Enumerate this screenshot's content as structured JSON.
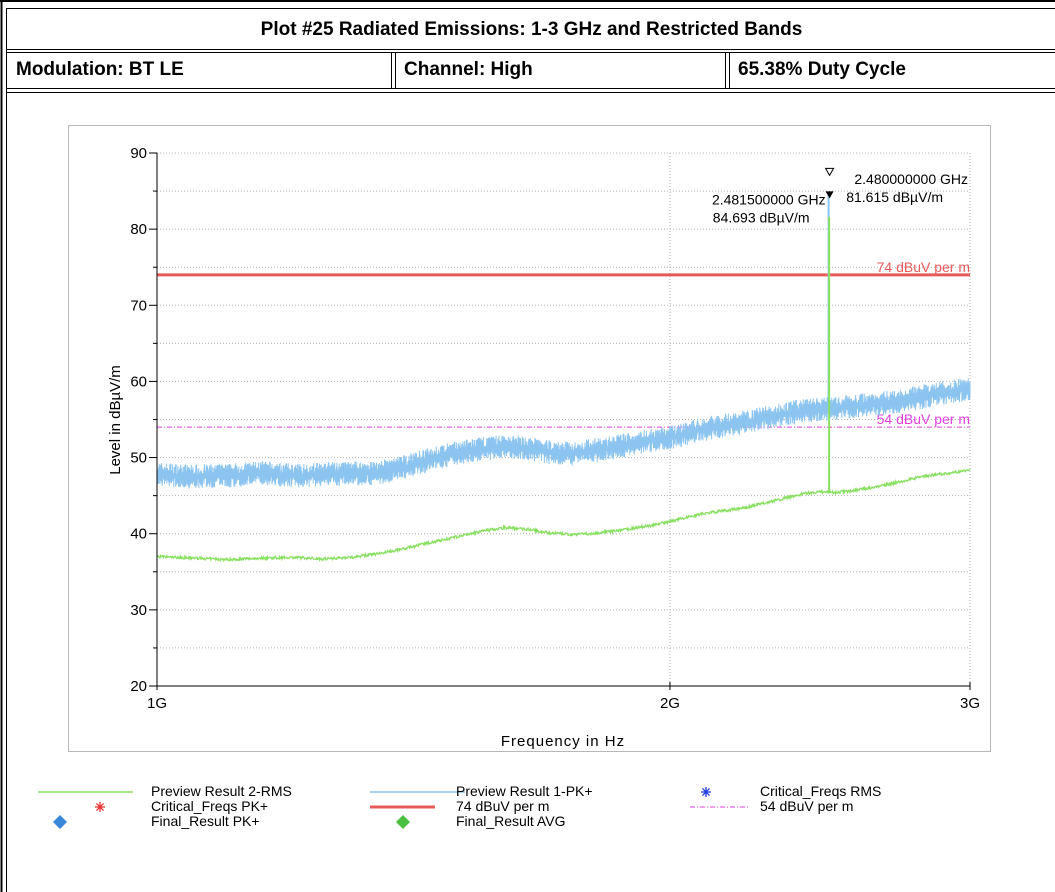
{
  "header": {
    "title": "Plot #25 Radiated Emissions: 1-3 GHz and Restricted Bands",
    "modulation": "Modulation: BT LE",
    "channel": "Channel: High",
    "duty_cycle": "65.38% Duty Cycle"
  },
  "colors": {
    "rms": "#88e060",
    "peak": "#8cc4f0",
    "limit74": "#e85a5a",
    "limit54": "#e040e0",
    "critical_pk": "#e83030",
    "critical_rms": "#2040e0",
    "final_pk": "#3a86d8",
    "final_avg": "#4cc040"
  },
  "chart_data": {
    "type": "line",
    "xlabel": "Frequency in Hz",
    "ylabel": "Level in dBµV/m",
    "x_scale": "log",
    "xlim": [
      1000000000,
      3000000000
    ],
    "ylim": [
      20,
      90
    ],
    "x_ticks": [
      {
        "value": 1000000000,
        "label": "1G"
      },
      {
        "value": 2000000000,
        "label": "2G"
      },
      {
        "value": 3000000000,
        "label": "3G"
      }
    ],
    "y_ticks": [
      20,
      30,
      40,
      50,
      60,
      70,
      80,
      90
    ],
    "grid": true,
    "series": [
      {
        "name": "Preview Result 1-PK+",
        "x": [
          1000000000,
          1050000000,
          1100000000,
          1150000000,
          1200000000,
          1250000000,
          1300000000,
          1350000000,
          1400000000,
          1450000000,
          1500000000,
          1550000000,
          1600000000,
          1650000000,
          1700000000,
          1750000000,
          1800000000,
          1850000000,
          1900000000,
          1950000000,
          2000000000,
          2050000000,
          2100000000,
          2150000000,
          2200000000,
          2250000000,
          2300000000,
          2350000000,
          2400000000,
          2450000000,
          2500000000,
          2550000000,
          2600000000,
          2650000000,
          2700000000,
          2750000000,
          2800000000,
          2850000000,
          2900000000,
          2950000000,
          3000000000
        ],
        "y": [
          47.8,
          47.5,
          47.6,
          48.0,
          47.6,
          47.8,
          47.9,
          48.0,
          48.8,
          49.8,
          50.6,
          51.1,
          51.5,
          51.2,
          50.7,
          50.5,
          50.9,
          51.3,
          51.8,
          52.3,
          52.6,
          53.2,
          53.8,
          54.2,
          54.5,
          55.0,
          55.4,
          55.8,
          56.2,
          56.4,
          56.5,
          56.7,
          56.9,
          57.1,
          57.3,
          57.6,
          57.9,
          58.2,
          58.5,
          58.8,
          59.0
        ]
      },
      {
        "name": "Preview Result 2-RMS",
        "x": [
          1000000000,
          1050000000,
          1100000000,
          1150000000,
          1200000000,
          1250000000,
          1300000000,
          1350000000,
          1400000000,
          1450000000,
          1500000000,
          1550000000,
          1600000000,
          1650000000,
          1700000000,
          1750000000,
          1800000000,
          1850000000,
          1900000000,
          1950000000,
          2000000000,
          2050000000,
          2100000000,
          2150000000,
          2200000000,
          2250000000,
          2300000000,
          2350000000,
          2400000000,
          2450000000,
          2500000000,
          2550000000,
          2600000000,
          2650000000,
          2700000000,
          2750000000,
          2800000000,
          2850000000,
          2900000000,
          2950000000,
          3000000000
        ],
        "y": [
          37.0,
          36.8,
          36.6,
          36.8,
          36.9,
          36.7,
          36.9,
          37.4,
          38.1,
          38.9,
          39.6,
          40.3,
          40.8,
          40.6,
          40.1,
          39.9,
          40.0,
          40.3,
          40.7,
          41.1,
          41.6,
          42.2,
          42.7,
          43.0,
          43.3,
          43.8,
          44.3,
          44.8,
          45.3,
          45.5,
          45.4,
          45.6,
          45.9,
          46.2,
          46.6,
          47.0,
          47.4,
          47.7,
          47.9,
          48.1,
          48.3
        ]
      },
      {
        "name": "74 dBuV per m",
        "y_constant": 74
      },
      {
        "name": "54 dBuV per m",
        "y_constant": 54
      }
    ],
    "markers": [
      {
        "x": 2481500000,
        "y": 84.693,
        "label_freq": "2.481500000 GHz",
        "label_level": "84.693 dBµV/m"
      },
      {
        "x": 2480000000,
        "y": 81.615,
        "label_freq": "2.480000000 GHz",
        "label_level": "81.615 dBµV/m"
      }
    ],
    "limit_labels": {
      "l74": "74 dBuV per m",
      "l54": "54 dBuV per m"
    }
  },
  "legend": {
    "items": [
      {
        "label": "Preview Result 2-RMS",
        "kind": "line",
        "color": "#88e060"
      },
      {
        "label": "Preview Result 1-PK+",
        "kind": "line",
        "color": "#8cc4f0"
      },
      {
        "label": "Critical_Freqs RMS",
        "kind": "star",
        "color": "#2040e0"
      },
      {
        "label": "Critical_Freqs PK+",
        "kind": "star",
        "color": "#e83030"
      },
      {
        "label": "74 dBuV per m",
        "kind": "thickline",
        "color": "#e85a5a"
      },
      {
        "label": "54 dBuV per m",
        "kind": "dashdot",
        "color": "#e040e0"
      },
      {
        "label": "Final_Result PK+",
        "kind": "diamond",
        "color": "#3a86d8"
      },
      {
        "label": "Final_Result AVG",
        "kind": "diamond",
        "color": "#4cc040"
      }
    ]
  }
}
